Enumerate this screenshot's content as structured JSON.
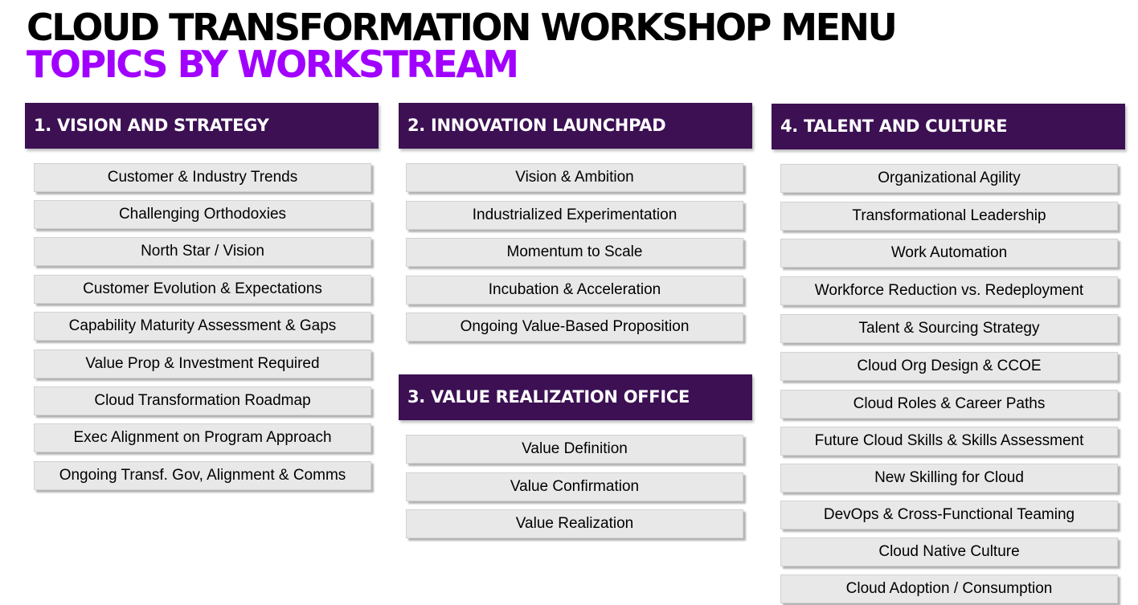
{
  "title": {
    "main": "CLOUD TRANSFORMATION WORKSHOP MENU",
    "sub": "TOPICS BY WORKSTREAM"
  },
  "workstreams": [
    {
      "title": "1. VISION AND STRATEGY",
      "items": [
        "Customer & Industry Trends",
        "Challenging Orthodoxies",
        "North Star / Vision",
        "Customer Evolution & Expectations",
        "Capability Maturity Assessment & Gaps",
        "Value Prop & Investment Required",
        "Cloud Transformation Roadmap",
        "Exec Alignment on Program Approach",
        "Ongoing Transf. Gov, Alignment & Comms"
      ]
    },
    {
      "title": "2. INNOVATION LAUNCHPAD",
      "items": [
        "Vision & Ambition",
        "Industrialized Experimentation",
        "Momentum to Scale",
        "Incubation & Acceleration",
        "Ongoing Value-Based Proposition"
      ]
    },
    {
      "title": "3. VALUE REALIZATION OFFICE",
      "items": [
        "Value Definition",
        "Value Confirmation",
        "Value Realization"
      ]
    },
    {
      "title": "4. TALENT AND CULTURE",
      "items": [
        "Organizational Agility",
        "Transformational Leadership",
        "Work Automation",
        "Workforce Reduction vs. Redeployment",
        "Talent & Sourcing Strategy",
        "Cloud Org Design & CCOE",
        "Cloud Roles & Career Paths",
        "Future Cloud Skills & Skills Assessment",
        "New Skilling for Cloud",
        "DevOps & Cross-Functional Teaming",
        "Cloud Native Culture",
        "Cloud Adoption / Consumption"
      ]
    }
  ],
  "colors": {
    "header_bg": "#3c1053",
    "accent": "#a100ff",
    "item_bg": "#e8e8e8"
  }
}
